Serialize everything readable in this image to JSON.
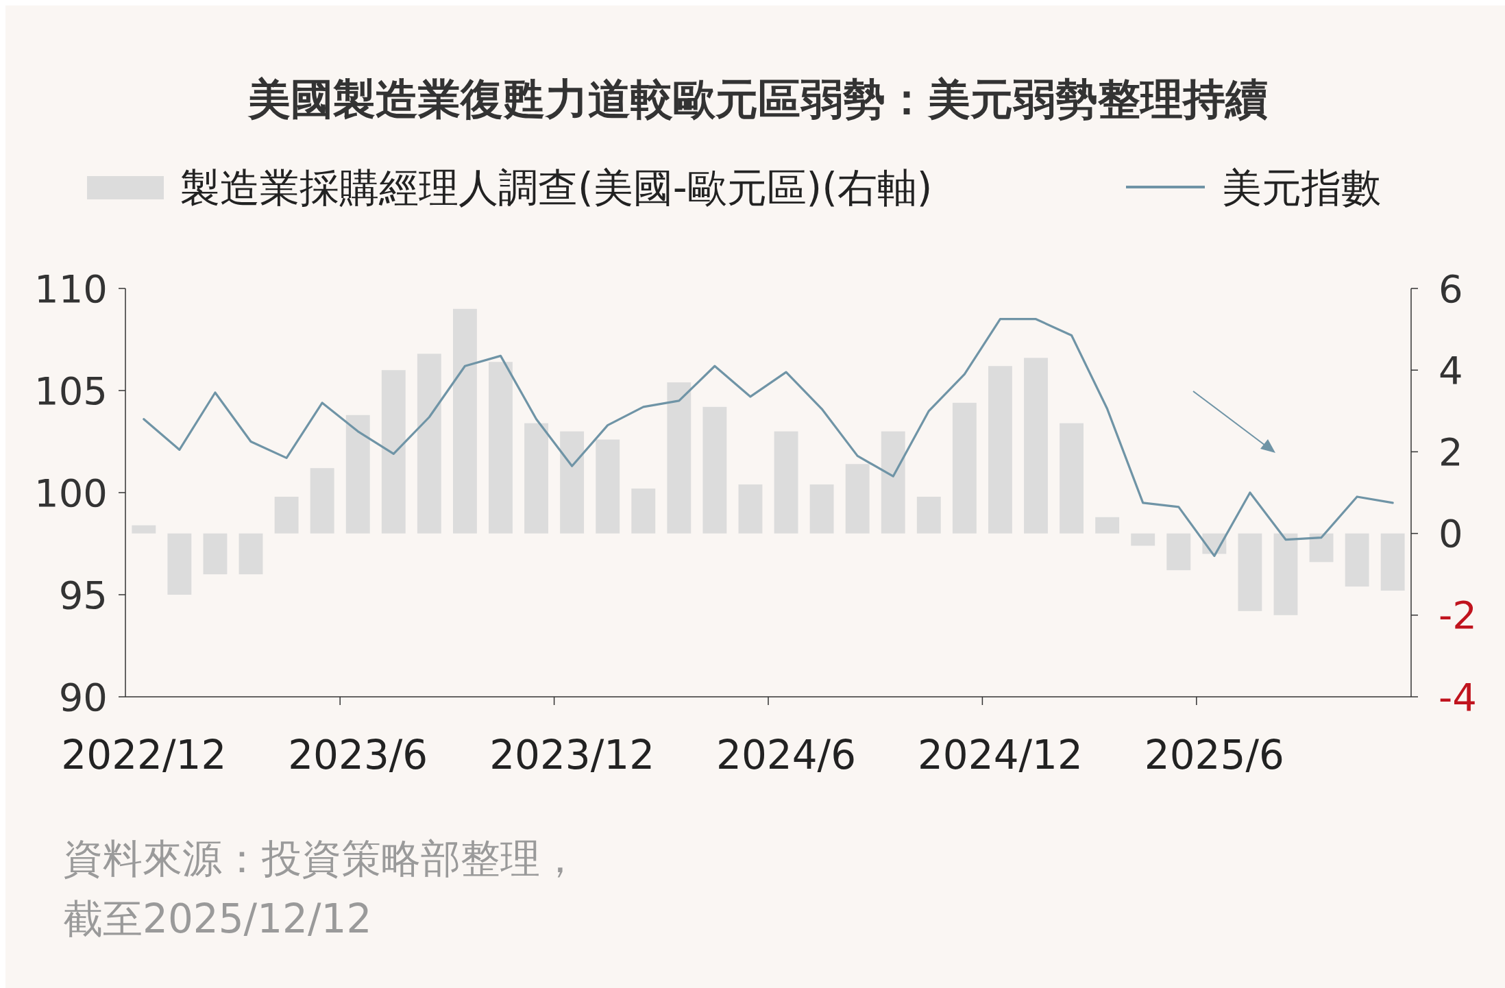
{
  "chart_data": {
    "type": "line",
    "title": "美國製造業復甦力道較歐元區弱勢：美元弱勢整理持續",
    "categories": [
      "2022/12",
      null,
      null,
      null,
      null,
      null,
      "2023/6",
      null,
      null,
      null,
      null,
      null,
      "2023/12",
      null,
      null,
      null,
      null,
      null,
      "2024/6",
      null,
      null,
      null,
      null,
      null,
      "2024/12",
      null,
      null,
      null,
      null,
      null,
      "2025/6",
      null,
      null,
      null,
      null,
      null
    ],
    "series": [
      {
        "name": "製造業採購經理人調查(美國-歐元區)(右軸)",
        "type": "bar",
        "axis": "y2",
        "color": "#dcdcdc",
        "values": [
          0.2,
          -1.5,
          -1.0,
          -1.0,
          0.9,
          1.6,
          2.9,
          4.0,
          4.4,
          5.5,
          4.2,
          2.7,
          2.5,
          2.3,
          1.1,
          3.7,
          3.1,
          1.2,
          2.5,
          1.2,
          1.7,
          2.5,
          0.9,
          3.2,
          4.1,
          4.3,
          2.7,
          0.4,
          -0.3,
          -0.9,
          -0.5,
          -1.9,
          -2.0,
          -0.7,
          -1.3,
          -1.4
        ]
      },
      {
        "name": "美元指數",
        "color": "#6f94a6",
        "values": [
          103.6,
          102.1,
          104.9,
          102.5,
          101.7,
          104.4,
          103.0,
          101.9,
          103.7,
          106.2,
          106.7,
          103.6,
          101.3,
          103.3,
          104.2,
          104.5,
          106.2,
          104.7,
          105.9,
          104.1,
          101.8,
          100.8,
          104.0,
          105.8,
          108.5,
          108.5,
          107.7,
          104.1,
          99.5,
          99.3,
          96.9,
          100.0,
          97.7,
          97.8,
          99.8,
          99.5
        ]
      }
    ],
    "ylim": [
      90,
      110
    ],
    "yticks": [
      90,
      95,
      100,
      105,
      110
    ],
    "y2lim": [
      -4,
      6
    ],
    "y2ticks": [
      -4,
      -2,
      0,
      2,
      4,
      6
    ],
    "legend": "top",
    "grid": false,
    "annotations": [
      "資料來源：投資策略部整理，",
      "截至2025/12/12"
    ]
  }
}
